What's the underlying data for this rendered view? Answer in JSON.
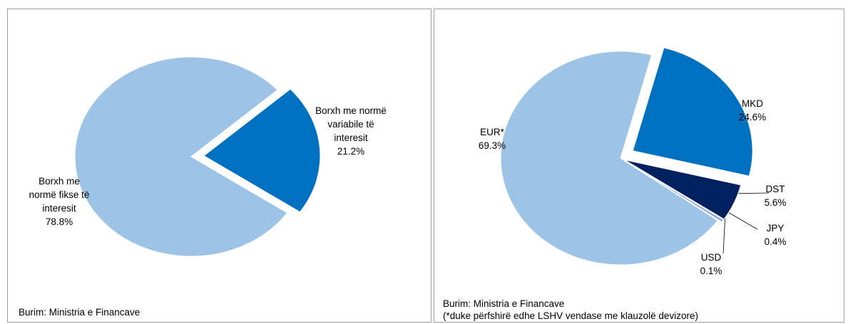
{
  "chart_data": [
    {
      "type": "pie",
      "categories": [
        "Borxh me normë fikse të interesit",
        "Borxh me normë variabile të interesit"
      ],
      "values": [
        78.8,
        21.2
      ],
      "value_labels": [
        "78.8%",
        "21.2%"
      ],
      "colors": [
        "#9dc3e6",
        "#0070c0"
      ],
      "source": "Burim: Ministria e Financave"
    },
    {
      "type": "pie",
      "categories": [
        "EUR*",
        "MKD",
        "DST",
        "JPY",
        "USD"
      ],
      "values": [
        69.3,
        24.6,
        5.6,
        0.4,
        0.1
      ],
      "value_labels": [
        "69.3%",
        "24.6%",
        "5.6%",
        "0.4%",
        "0.1%"
      ],
      "colors": [
        "#9dc3e6",
        "#0070c0",
        "#002060",
        "#8faadc",
        "#a6a6a6"
      ],
      "source": "Burim: Ministria e Financave",
      "note": "(*duke përfshirë edhe LSHV vendase me klauzolë  devizore)"
    }
  ]
}
